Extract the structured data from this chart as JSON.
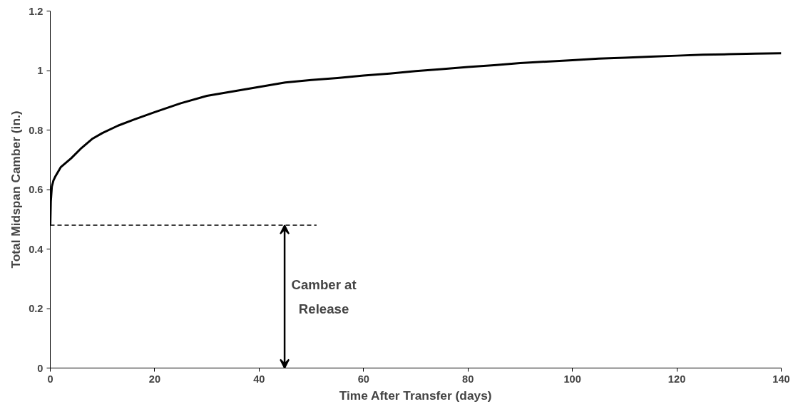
{
  "chart_data": {
    "type": "line",
    "xlabel": "Time After Transfer (days)",
    "ylabel": "Total Midspan Camber (in.)",
    "xlim": [
      0,
      140
    ],
    "xticks": [
      0,
      20,
      40,
      60,
      80,
      100,
      120,
      140
    ],
    "ylim": [
      0,
      1.2
    ],
    "yticks": [
      0,
      0.2,
      0.4,
      0.6,
      0.8,
      1,
      1.2
    ],
    "grid": false,
    "series": [
      {
        "color": "#000000",
        "line_style": "solid",
        "x": [
          0,
          0.1,
          0.3,
          0.6,
          1,
          2,
          3,
          4,
          6,
          8,
          10,
          13,
          16,
          20,
          25,
          30,
          35,
          40,
          45,
          50,
          55,
          60,
          65,
          70,
          75,
          80,
          85,
          90,
          95,
          100,
          105,
          110,
          115,
          120,
          125,
          130,
          135,
          140
        ],
        "values": [
          0.48,
          0.56,
          0.61,
          0.63,
          0.645,
          0.675,
          0.69,
          0.705,
          0.74,
          0.77,
          0.79,
          0.815,
          0.835,
          0.86,
          0.89,
          0.915,
          0.93,
          0.945,
          0.96,
          0.968,
          0.975,
          0.983,
          0.99,
          0.998,
          1.005,
          1.012,
          1.018,
          1.025,
          1.03,
          1.035,
          1.04,
          1.043,
          1.047,
          1.05,
          1.053,
          1.055,
          1.057,
          1.058
        ]
      },
      {
        "color": "#000000",
        "line_style": "dashed",
        "x": [
          0,
          51
        ],
        "values": [
          0.48,
          0.48
        ]
      }
    ],
    "annotations": [
      "Camber at\nRelease"
    ]
  }
}
